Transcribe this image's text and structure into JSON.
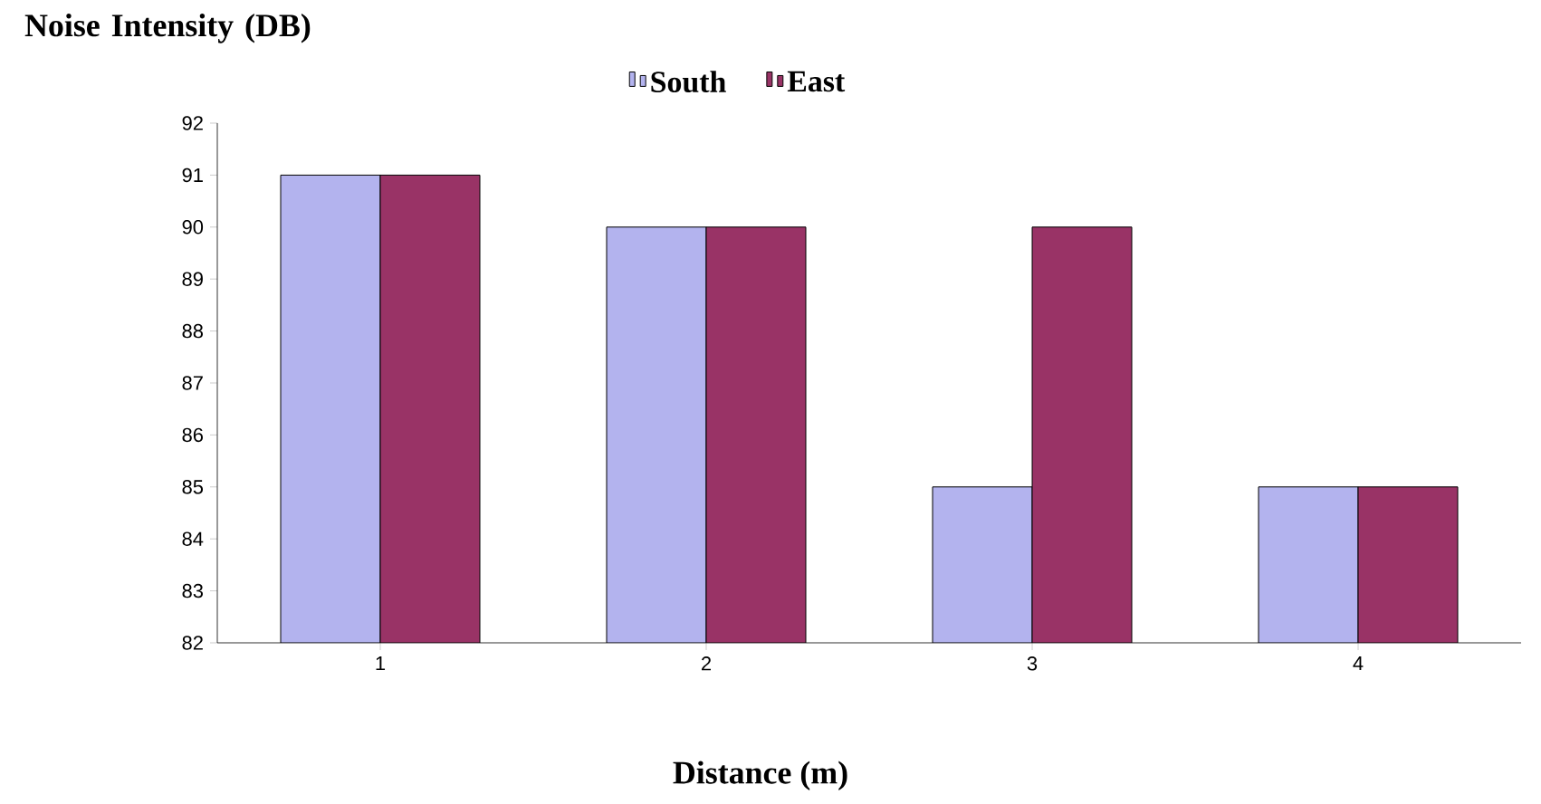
{
  "chart_data": {
    "type": "bar",
    "xlabel": "Distance (m)",
    "ylabel": "Noise Intensity (DB)",
    "categories": [
      "1",
      "2",
      "3",
      "4"
    ],
    "series": [
      {
        "name": "South",
        "color": "#b3b3ee",
        "values": [
          91,
          90,
          85,
          85
        ]
      },
      {
        "name": "East",
        "color": "#993366",
        "values": [
          91,
          90,
          90,
          85
        ]
      }
    ],
    "ylim": [
      82,
      92
    ],
    "yticks": [
      82,
      83,
      84,
      85,
      86,
      87,
      88,
      89,
      90,
      91,
      92
    ],
    "grid": false,
    "legend": "top"
  }
}
